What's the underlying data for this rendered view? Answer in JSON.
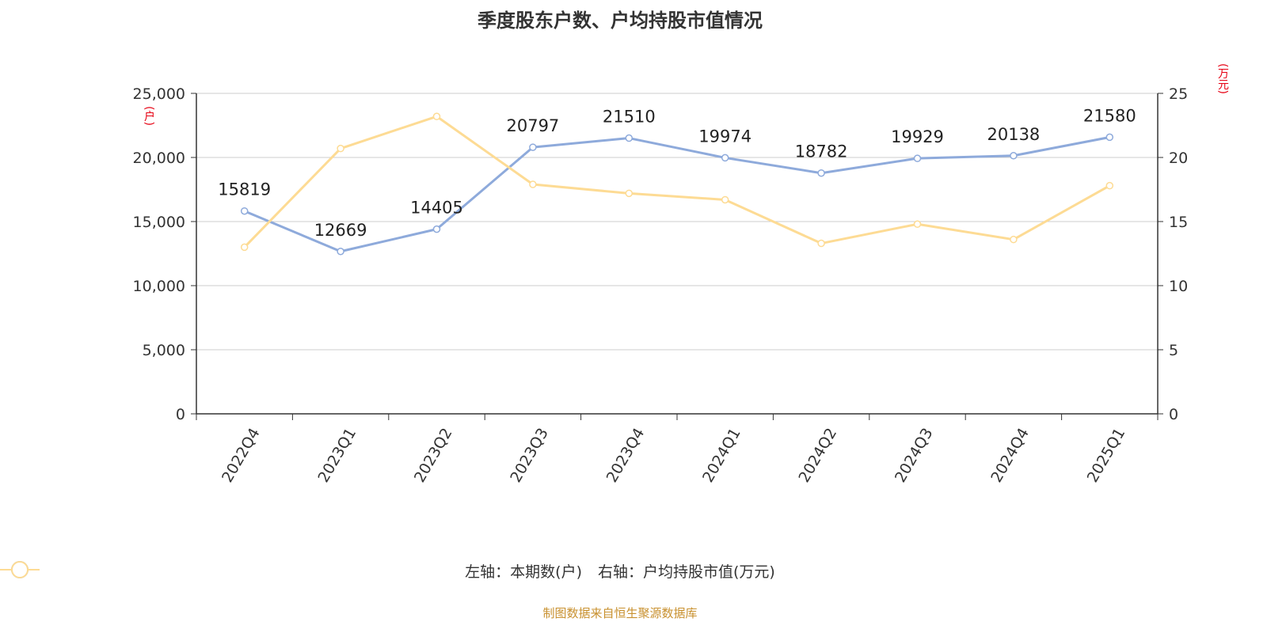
{
  "chart_data": {
    "type": "line",
    "title": "季度股东户数、户均持股市值情况",
    "categories": [
      "2022Q4",
      "2023Q1",
      "2023Q2",
      "2023Q3",
      "2023Q4",
      "2024Q1",
      "2024Q2",
      "2024Q3",
      "2024Q4",
      "2025Q1"
    ],
    "left_axis": {
      "unit": "(户)",
      "ylim": [
        0,
        25000
      ],
      "ticks": [
        "0",
        "5,000",
        "10,000",
        "15,000",
        "20,000",
        "25,000"
      ]
    },
    "right_axis": {
      "unit": "(万元)",
      "ylim": [
        0,
        25
      ],
      "ticks": [
        "0",
        "5",
        "10",
        "15",
        "20",
        "25"
      ]
    },
    "series": [
      {
        "name": "左轴：本期数(户)",
        "axis": "left",
        "color": "#8eaadb",
        "values": [
          15819,
          12669,
          14405,
          20797,
          21510,
          19974,
          18782,
          19929,
          20138,
          21580
        ],
        "labels": [
          "15819",
          "12669",
          "14405",
          "20797",
          "21510",
          "19974",
          "18782",
          "19929",
          "20138",
          "21580"
        ]
      },
      {
        "name": "右轴：户均持股市值(万元)",
        "axis": "right",
        "color": "#fddb94",
        "values": [
          13.0,
          20.7,
          23.2,
          17.9,
          17.2,
          16.7,
          13.3,
          14.8,
          13.6,
          17.8
        ]
      }
    ],
    "grid": true,
    "legend_position": "bottom"
  },
  "source": "制图数据来自恒生聚源数据库"
}
